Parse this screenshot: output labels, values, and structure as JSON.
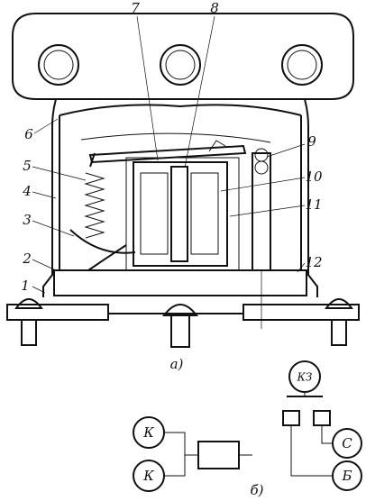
{
  "part_a": {
    "callouts": [
      "1",
      "2",
      "3",
      "4",
      "5",
      "6",
      "7",
      "8",
      "9",
      "10",
      "11",
      "12"
    ],
    "caption": "а)"
  },
  "part_b": {
    "circles": [
      "К",
      "К",
      "КЗ",
      "С",
      "Б"
    ],
    "caption": "б)"
  }
}
